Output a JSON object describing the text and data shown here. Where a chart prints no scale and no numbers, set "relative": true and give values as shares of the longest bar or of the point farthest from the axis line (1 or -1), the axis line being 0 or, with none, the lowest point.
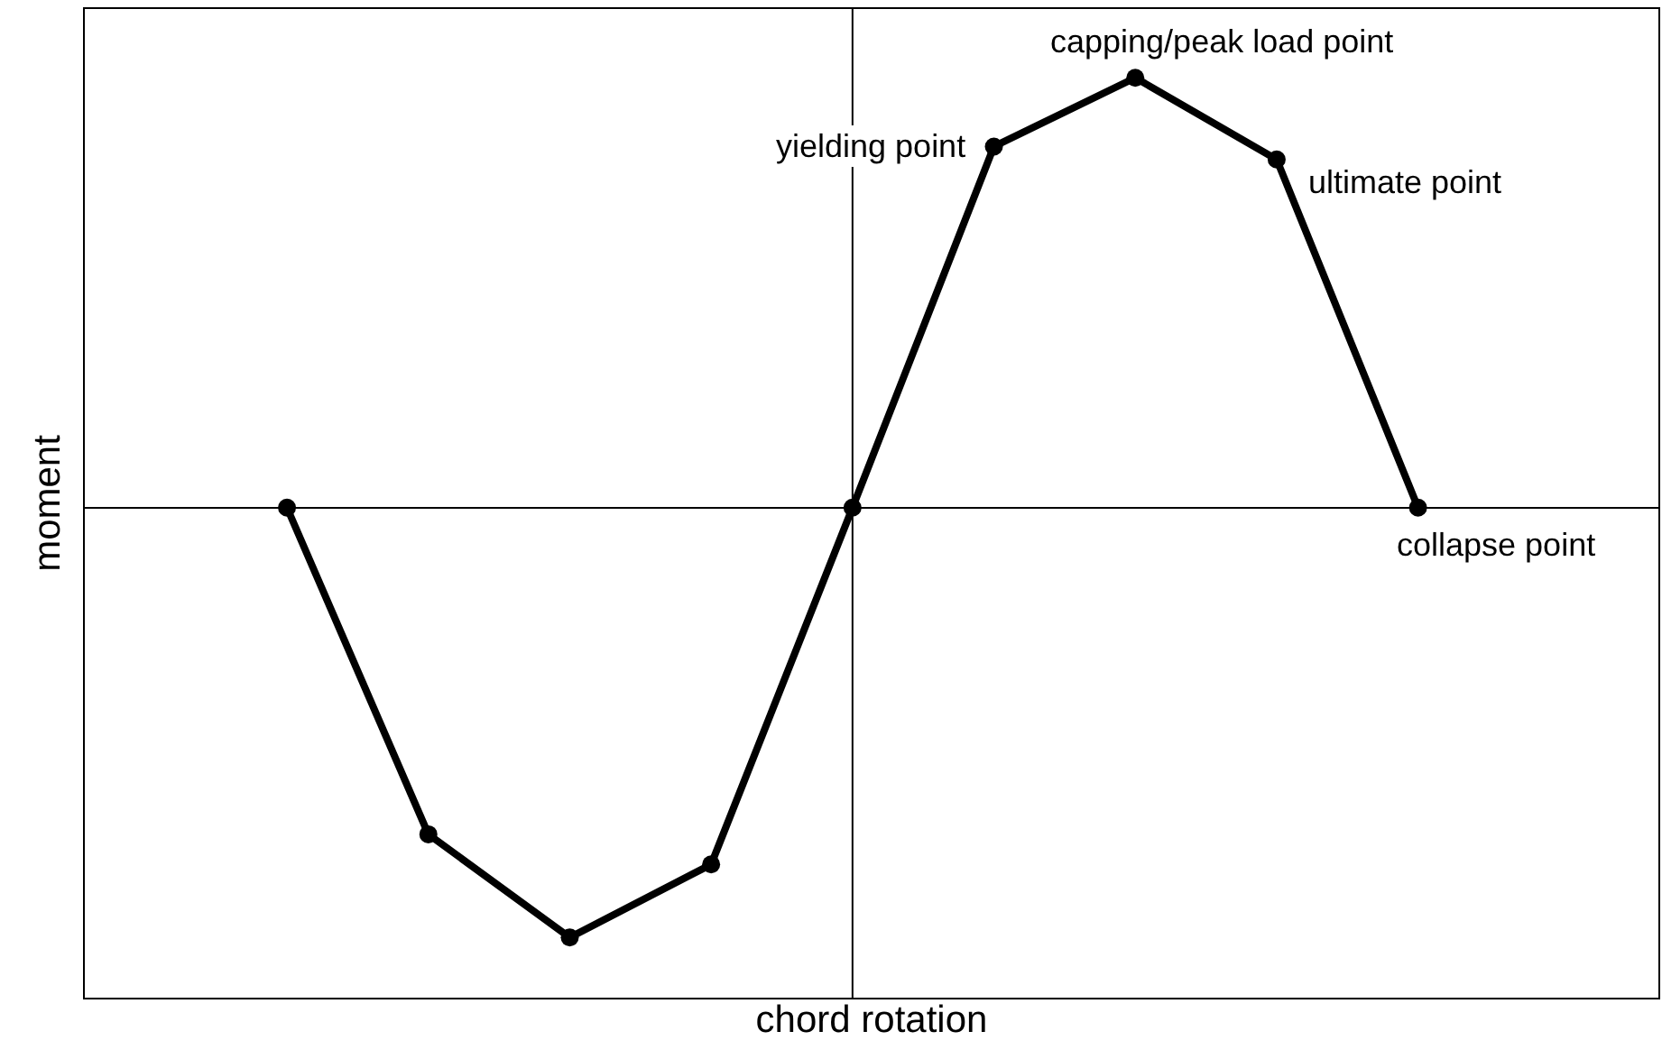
{
  "chart_data": {
    "type": "line",
    "relative": true,
    "xlabel": "chord rotation",
    "ylabel": "moment",
    "categories": [
      null,
      null,
      null,
      null,
      null,
      null,
      null,
      null,
      null
    ],
    "series": [
      {
        "color": "#000000",
        "values": [
          0,
          -0.76,
          -1,
          -0.83,
          0,
          0.84,
          1,
          0.81,
          0
        ]
      }
    ],
    "annotations": [
      "yielding point",
      "capping/peak load point",
      "ultimate point",
      "collapse point"
    ],
    "marker": "circle",
    "line_style": "solid",
    "grid": false
  }
}
